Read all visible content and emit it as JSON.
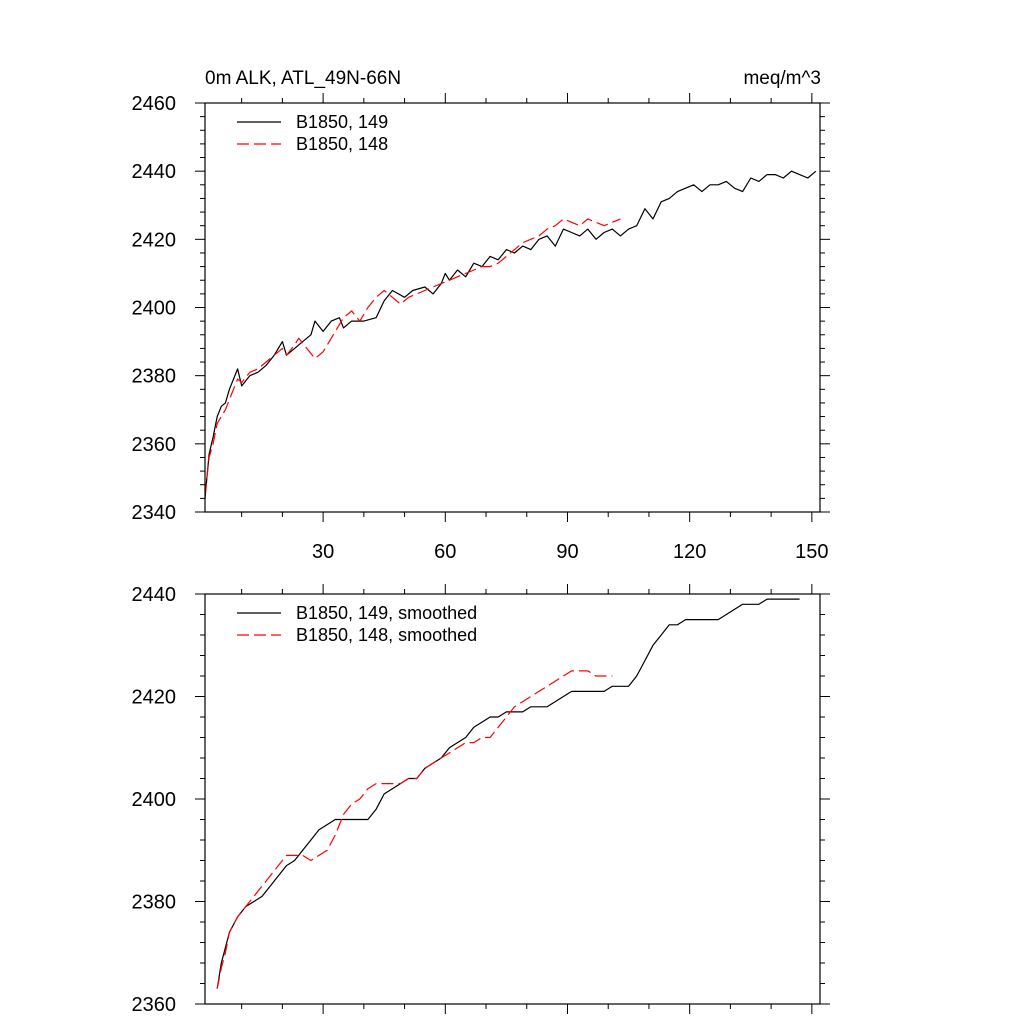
{
  "chart_data": [
    {
      "type": "line",
      "title_left": "0m ALK, ATL_49N-66N",
      "title_right": "meq/m^3",
      "xlim": [
        1,
        152
      ],
      "ylim": [
        2340,
        2460
      ],
      "x_ticks": [
        30,
        60,
        90,
        120,
        150
      ],
      "x_tick_labels": [
        "30",
        "60",
        "90",
        "120",
        "150"
      ],
      "y_ticks": [
        2340,
        2360,
        2380,
        2400,
        2420,
        2440,
        2460
      ],
      "y_tick_labels": [
        "2340",
        "2360",
        "2380",
        "2400",
        "2420",
        "2440",
        "2460"
      ],
      "legend_position": "top-left",
      "series": [
        {
          "name": "B1850, 149",
          "color": "#000000",
          "dash": "solid",
          "points": [
            [
              1,
              2344
            ],
            [
              2,
              2357
            ],
            [
              3,
              2362
            ],
            [
              4,
              2368
            ],
            [
              5,
              2371
            ],
            [
              6,
              2372
            ],
            [
              7,
              2376
            ],
            [
              8,
              2379
            ],
            [
              9,
              2382
            ],
            [
              10,
              2377
            ],
            [
              12,
              2380
            ],
            [
              14,
              2381
            ],
            [
              16,
              2383
            ],
            [
              18,
              2386
            ],
            [
              20,
              2390
            ],
            [
              21,
              2386
            ],
            [
              23,
              2388
            ],
            [
              25,
              2390
            ],
            [
              27,
              2392
            ],
            [
              28,
              2396
            ],
            [
              30,
              2393
            ],
            [
              32,
              2396
            ],
            [
              34,
              2397
            ],
            [
              35,
              2394
            ],
            [
              37,
              2396
            ],
            [
              40,
              2396
            ],
            [
              43,
              2397
            ],
            [
              45,
              2402
            ],
            [
              47,
              2405
            ],
            [
              50,
              2403
            ],
            [
              52,
              2405
            ],
            [
              55,
              2406
            ],
            [
              57,
              2404
            ],
            [
              59,
              2407
            ],
            [
              60,
              2410
            ],
            [
              61,
              2408
            ],
            [
              63,
              2411
            ],
            [
              65,
              2409
            ],
            [
              67,
              2413
            ],
            [
              69,
              2412
            ],
            [
              71,
              2415
            ],
            [
              73,
              2414
            ],
            [
              75,
              2417
            ],
            [
              77,
              2416
            ],
            [
              79,
              2418
            ],
            [
              81,
              2417
            ],
            [
              83,
              2420
            ],
            [
              85,
              2421
            ],
            [
              87,
              2418
            ],
            [
              89,
              2423
            ],
            [
              91,
              2422
            ],
            [
              93,
              2421
            ],
            [
              95,
              2423
            ],
            [
              97,
              2420
            ],
            [
              99,
              2422
            ],
            [
              101,
              2423
            ],
            [
              103,
              2421
            ],
            [
              105,
              2423
            ],
            [
              107,
              2424
            ],
            [
              109,
              2429
            ],
            [
              111,
              2426
            ],
            [
              113,
              2431
            ],
            [
              115,
              2432
            ],
            [
              117,
              2434
            ],
            [
              119,
              2435
            ],
            [
              121,
              2436
            ],
            [
              123,
              2434
            ],
            [
              125,
              2436
            ],
            [
              127,
              2436
            ],
            [
              129,
              2437
            ],
            [
              131,
              2435
            ],
            [
              133,
              2434
            ],
            [
              135,
              2438
            ],
            [
              137,
              2437
            ],
            [
              139,
              2439
            ],
            [
              141,
              2439
            ],
            [
              143,
              2438
            ],
            [
              145,
              2440
            ],
            [
              147,
              2439
            ],
            [
              149,
              2438
            ],
            [
              151,
              2440
            ]
          ]
        },
        {
          "name": "B1850, 148",
          "color": "#ff0000",
          "dash": "dashed",
          "points": [
            [
              1,
              2345
            ],
            [
              2,
              2356
            ],
            [
              3,
              2360
            ],
            [
              4,
              2366
            ],
            [
              5,
              2368
            ],
            [
              6,
              2370
            ],
            [
              7,
              2373
            ],
            [
              8,
              2376
            ],
            [
              9,
              2379
            ],
            [
              10,
              2378
            ],
            [
              12,
              2381
            ],
            [
              14,
              2382
            ],
            [
              16,
              2384
            ],
            [
              18,
              2386
            ],
            [
              20,
              2388
            ],
            [
              21,
              2386
            ],
            [
              23,
              2389
            ],
            [
              24,
              2391
            ],
            [
              26,
              2388
            ],
            [
              28,
              2385
            ],
            [
              30,
              2387
            ],
            [
              32,
              2391
            ],
            [
              33,
              2393
            ],
            [
              35,
              2397
            ],
            [
              37,
              2399
            ],
            [
              39,
              2396
            ],
            [
              41,
              2400
            ],
            [
              43,
              2403
            ],
            [
              45,
              2405
            ],
            [
              47,
              2403
            ],
            [
              49,
              2401
            ],
            [
              51,
              2403
            ],
            [
              53,
              2404
            ],
            [
              55,
              2405
            ],
            [
              57,
              2406
            ],
            [
              59,
              2407
            ],
            [
              61,
              2408
            ],
            [
              63,
              2409
            ],
            [
              65,
              2410
            ],
            [
              67,
              2411
            ],
            [
              69,
              2412
            ],
            [
              71,
              2412
            ],
            [
              73,
              2413
            ],
            [
              75,
              2415
            ],
            [
              77,
              2417
            ],
            [
              79,
              2419
            ],
            [
              81,
              2420
            ],
            [
              83,
              2421
            ],
            [
              85,
              2423
            ],
            [
              87,
              2424
            ],
            [
              89,
              2426
            ],
            [
              91,
              2425
            ],
            [
              93,
              2424
            ],
            [
              95,
              2426
            ],
            [
              97,
              2425
            ],
            [
              99,
              2424
            ],
            [
              101,
              2425
            ],
            [
              103,
              2426
            ]
          ]
        }
      ]
    },
    {
      "type": "line",
      "xlim": [
        1,
        152
      ],
      "ylim": [
        2360,
        2440
      ],
      "x_ticks": [
        30,
        60,
        90,
        120,
        150
      ],
      "y_ticks": [
        2360,
        2380,
        2400,
        2420,
        2440
      ],
      "y_tick_labels": [
        "2360",
        "2380",
        "2400",
        "2420",
        "2440"
      ],
      "legend_position": "top-left",
      "series": [
        {
          "name": "B1850, 149, smoothed",
          "color": "#000000",
          "dash": "solid",
          "points": [
            [
              4,
              2363
            ],
            [
              5,
              2368
            ],
            [
              6,
              2371
            ],
            [
              7,
              2374
            ],
            [
              9,
              2377
            ],
            [
              11,
              2379
            ],
            [
              13,
              2380
            ],
            [
              15,
              2381
            ],
            [
              17,
              2383
            ],
            [
              19,
              2385
            ],
            [
              21,
              2387
            ],
            [
              23,
              2388
            ],
            [
              25,
              2390
            ],
            [
              27,
              2392
            ],
            [
              29,
              2394
            ],
            [
              31,
              2395
            ],
            [
              33,
              2396
            ],
            [
              35,
              2396
            ],
            [
              37,
              2396
            ],
            [
              39,
              2396
            ],
            [
              41,
              2396
            ],
            [
              43,
              2398
            ],
            [
              45,
              2401
            ],
            [
              47,
              2402
            ],
            [
              49,
              2403
            ],
            [
              51,
              2404
            ],
            [
              53,
              2404
            ],
            [
              55,
              2406
            ],
            [
              57,
              2407
            ],
            [
              59,
              2408
            ],
            [
              61,
              2410
            ],
            [
              63,
              2411
            ],
            [
              65,
              2412
            ],
            [
              67,
              2414
            ],
            [
              69,
              2415
            ],
            [
              71,
              2416
            ],
            [
              73,
              2416
            ],
            [
              75,
              2417
            ],
            [
              77,
              2417
            ],
            [
              79,
              2417
            ],
            [
              81,
              2418
            ],
            [
              83,
              2418
            ],
            [
              85,
              2418
            ],
            [
              87,
              2419
            ],
            [
              89,
              2420
            ],
            [
              91,
              2421
            ],
            [
              93,
              2421
            ],
            [
              95,
              2421
            ],
            [
              97,
              2421
            ],
            [
              99,
              2421
            ],
            [
              101,
              2422
            ],
            [
              103,
              2422
            ],
            [
              105,
              2422
            ],
            [
              107,
              2424
            ],
            [
              109,
              2427
            ],
            [
              111,
              2430
            ],
            [
              113,
              2432
            ],
            [
              115,
              2434
            ],
            [
              117,
              2434
            ],
            [
              119,
              2435
            ],
            [
              121,
              2435
            ],
            [
              123,
              2435
            ],
            [
              125,
              2435
            ],
            [
              127,
              2435
            ],
            [
              129,
              2436
            ],
            [
              131,
              2437
            ],
            [
              133,
              2438
            ],
            [
              135,
              2438
            ],
            [
              137,
              2438
            ],
            [
              139,
              2439
            ],
            [
              141,
              2439
            ],
            [
              143,
              2439
            ],
            [
              145,
              2439
            ],
            [
              147,
              2439
            ]
          ]
        },
        {
          "name": "B1850, 148, smoothed",
          "color": "#ff0000",
          "dash": "dashed",
          "points": [
            [
              4,
              2363
            ],
            [
              5,
              2367
            ],
            [
              6,
              2370
            ],
            [
              7,
              2374
            ],
            [
              9,
              2377
            ],
            [
              11,
              2379
            ],
            [
              13,
              2381
            ],
            [
              15,
              2383
            ],
            [
              17,
              2385
            ],
            [
              19,
              2387
            ],
            [
              21,
              2389
            ],
            [
              23,
              2389
            ],
            [
              25,
              2389
            ],
            [
              27,
              2388
            ],
            [
              29,
              2389
            ],
            [
              31,
              2390
            ],
            [
              33,
              2393
            ],
            [
              35,
              2397
            ],
            [
              37,
              2399
            ],
            [
              39,
              2400
            ],
            [
              41,
              2402
            ],
            [
              43,
              2403
            ],
            [
              45,
              2403
            ],
            [
              47,
              2403
            ],
            [
              49,
              2403
            ],
            [
              51,
              2404
            ],
            [
              53,
              2404
            ],
            [
              55,
              2406
            ],
            [
              57,
              2407
            ],
            [
              59,
              2408
            ],
            [
              61,
              2409
            ],
            [
              63,
              2410
            ],
            [
              65,
              2411
            ],
            [
              67,
              2411
            ],
            [
              69,
              2412
            ],
            [
              71,
              2412
            ],
            [
              73,
              2414
            ],
            [
              75,
              2416
            ],
            [
              77,
              2418
            ],
            [
              79,
              2419
            ],
            [
              81,
              2420
            ],
            [
              83,
              2421
            ],
            [
              85,
              2422
            ],
            [
              87,
              2423
            ],
            [
              89,
              2424
            ],
            [
              91,
              2425
            ],
            [
              93,
              2425
            ],
            [
              95,
              2425
            ],
            [
              97,
              2424
            ],
            [
              99,
              2424
            ],
            [
              101,
              2424
            ]
          ]
        }
      ]
    }
  ]
}
